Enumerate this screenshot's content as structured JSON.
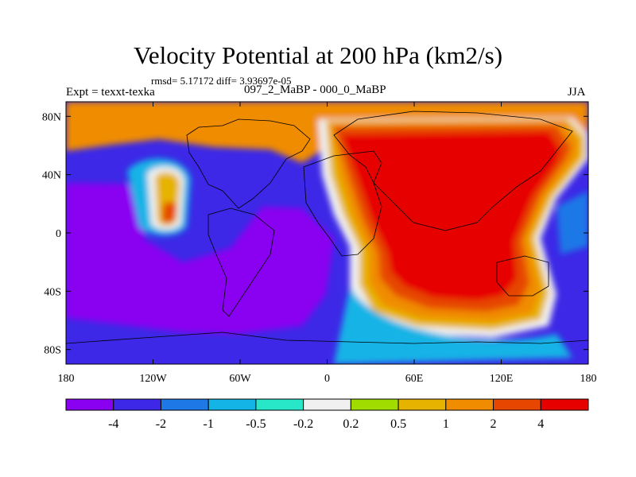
{
  "title": "Velocity Potential at 200 hPa (km2/s)",
  "stats": "rmsd= 5.17172 diff= 3.93697e-05",
  "left_label": "Expt = texxt-texka",
  "subtitle": "097_2_MaBP - 000_0_MaBP",
  "season": "JJA",
  "x_ticks": [
    "180",
    "120W",
    "60W",
    "0",
    "60E",
    "120E",
    "180"
  ],
  "y_ticks": [
    "80N",
    "40N",
    "0",
    "40S",
    "80S"
  ],
  "colorbar": {
    "colors": [
      "#8a00f0",
      "#3c28e6",
      "#1e78e6",
      "#14b4e6",
      "#28e6c8",
      "#f0f0f0",
      "#a0dc00",
      "#e6b400",
      "#f08c00",
      "#e64600",
      "#e60000"
    ],
    "labels": [
      "-4",
      "-2",
      "-1",
      "-0.5",
      "-0.2",
      "0.2",
      "0.5",
      "1",
      "2",
      "4"
    ]
  },
  "map": {
    "lon_range": [
      -180,
      180
    ],
    "lat_range": [
      -90,
      90
    ]
  }
}
